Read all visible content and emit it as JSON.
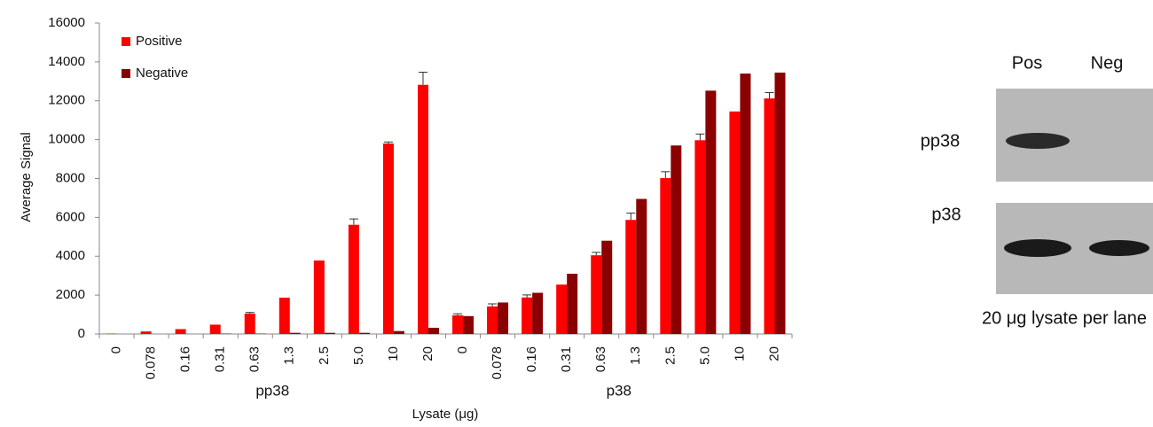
{
  "chart_data": {
    "type": "bar",
    "y_label": "Average Signal",
    "x_label": "Lysate (μg)",
    "categories": [
      "0",
      "0.078",
      "0.16",
      "0.31",
      "0.63",
      "1.3",
      "2.5",
      "5.0",
      "10",
      "20",
      "0",
      "0.078",
      "0.16",
      "0.31",
      "0.63",
      "1.3",
      "2.5",
      "5.0",
      "10",
      "20"
    ],
    "group_labels": [
      "pp38",
      "p38"
    ],
    "series": [
      {
        "name": "Positive",
        "color": "#ff0000",
        "values": [
          20,
          130,
          250,
          480,
          1050,
          1870,
          3780,
          5620,
          9800,
          12820,
          960,
          1420,
          1880,
          2540,
          4050,
          5870,
          8020,
          9970,
          11450,
          12120
        ],
        "errors": [
          null,
          null,
          null,
          null,
          60,
          null,
          null,
          300,
          80,
          650,
          80,
          130,
          130,
          null,
          150,
          350,
          330,
          320,
          null,
          300
        ]
      },
      {
        "name": "Negative",
        "color": "#8b0000",
        "values": [
          0,
          0,
          0,
          20,
          20,
          60,
          60,
          60,
          150,
          320,
          920,
          1620,
          2120,
          3100,
          4800,
          6950,
          9700,
          12520,
          13400,
          13450
        ]
      }
    ],
    "ylim": [
      0,
      16000
    ],
    "yticks": [
      0,
      2000,
      4000,
      6000,
      8000,
      10000,
      12000,
      14000,
      16000
    ],
    "legend": "top-left"
  },
  "blot": {
    "columns": [
      "Pos",
      "Neg"
    ],
    "rows": [
      "pp38",
      "p38"
    ],
    "caption": "20 μg lysate per lane"
  }
}
